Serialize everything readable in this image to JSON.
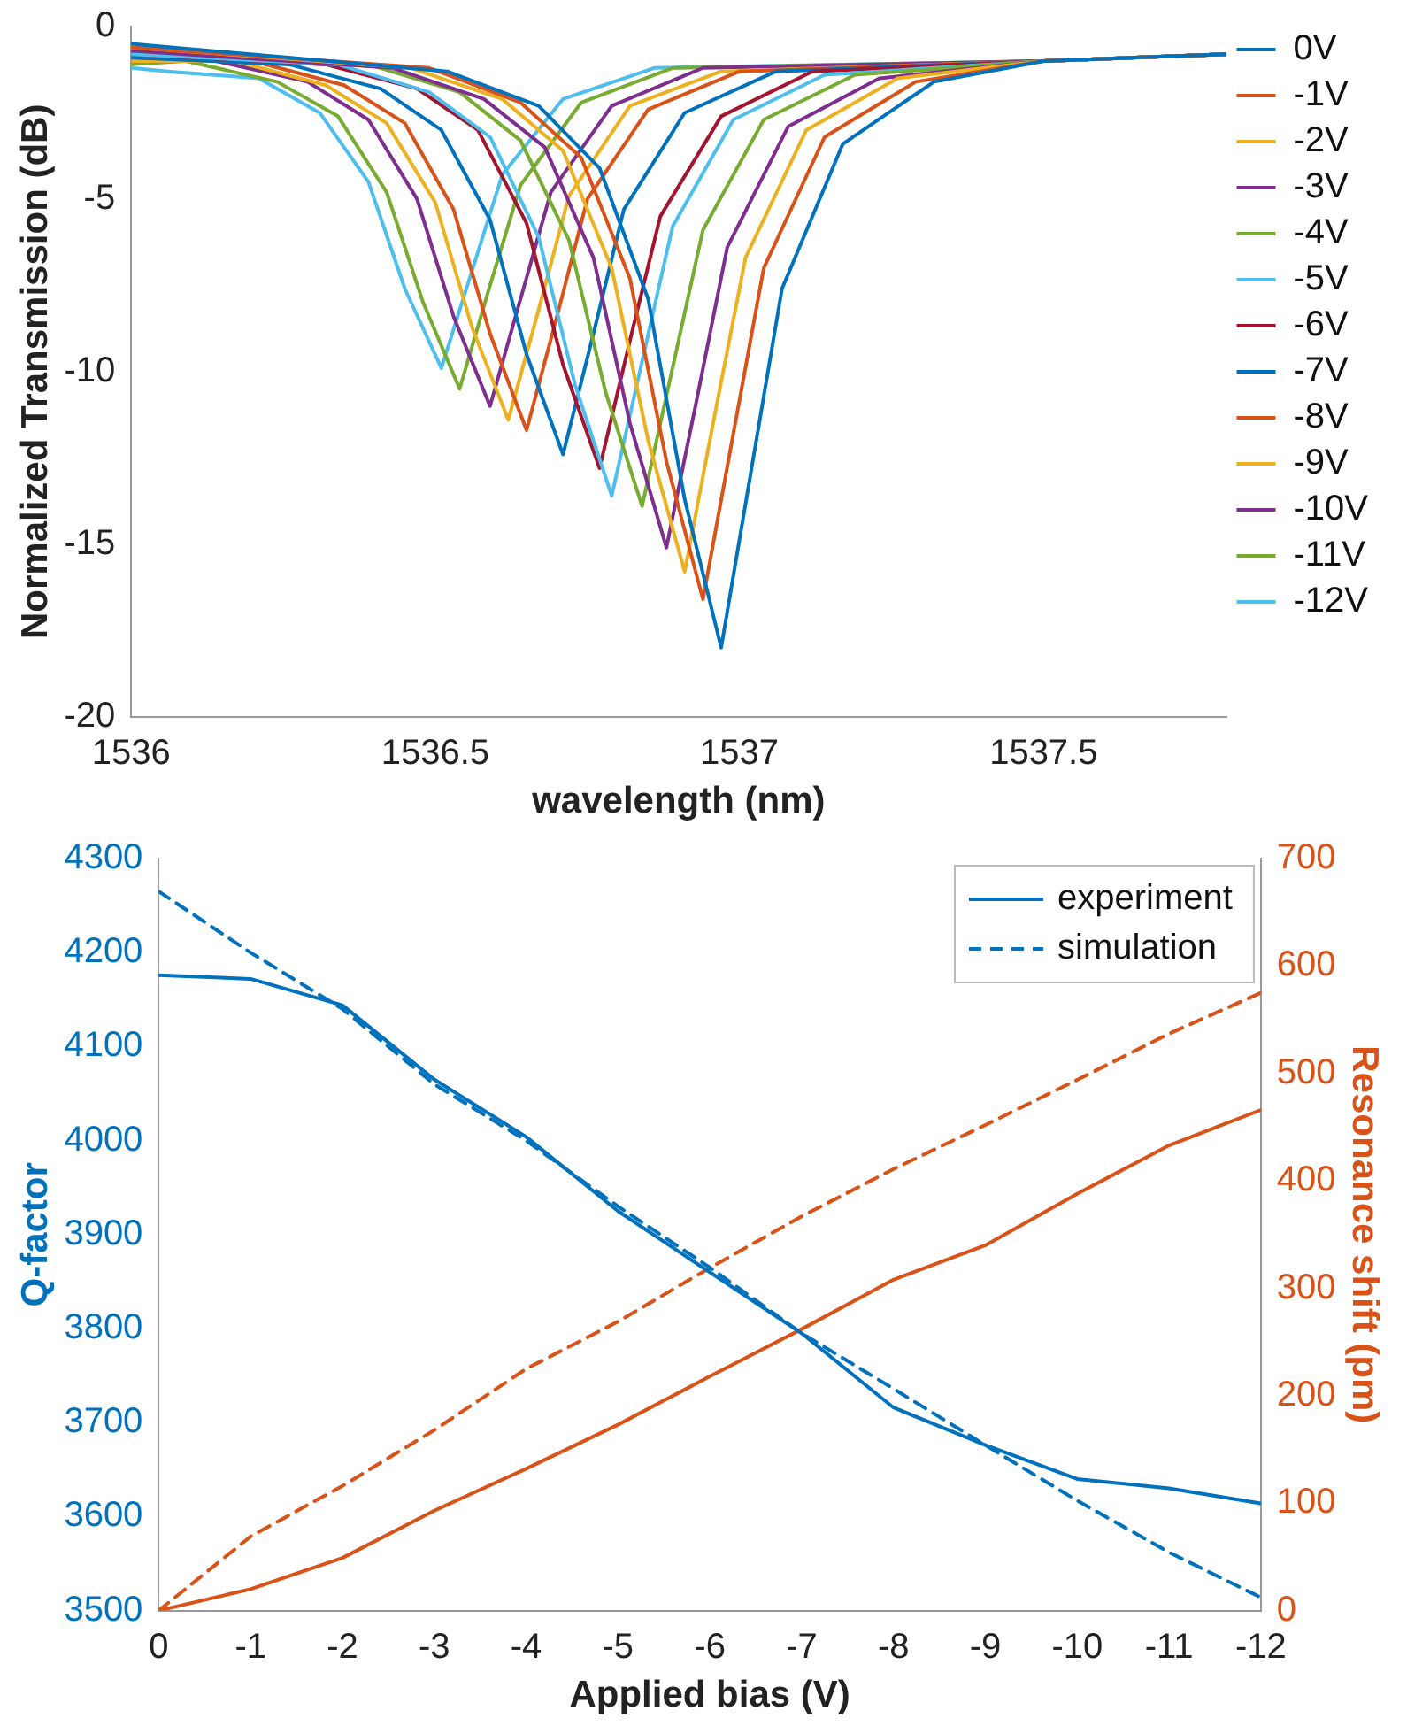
{
  "chart_data": [
    {
      "type": "line",
      "xlabel": "wavelength (nm)",
      "ylabel": "Normalized Transmission (dB)",
      "xlim": [
        1536,
        1537.8
      ],
      "xticks": [
        1536,
        1536.5,
        1537,
        1537.5
      ],
      "ylim": [
        -20,
        0
      ],
      "yticks": [
        -20,
        -15,
        -10,
        -5,
        0
      ],
      "grid": false,
      "legend": "right",
      "marker": "none",
      "line_style": "solid",
      "series": [
        {
          "name": "0V",
          "color": "#0072bd",
          "x": [
            1536,
            1536.52,
            1536.67,
            1536.77,
            1536.85,
            1536.91,
            1536.97,
            1537.02,
            1537.07,
            1537.17,
            1537.32,
            1537.5,
            1537.8
          ],
          "values": [
            -0.5,
            -1.3,
            -2.3,
            -4.1,
            -7.9,
            -13.7,
            -18.0,
            -12.8,
            -7.6,
            -3.4,
            -1.6,
            -1.0,
            -0.8
          ]
        },
        {
          "name": "-1V",
          "color": "#d95319",
          "x": [
            1536,
            1536.49,
            1536.64,
            1536.74,
            1536.82,
            1536.88,
            1536.94,
            1536.99,
            1537.04,
            1537.14,
            1537.29,
            1537.5,
            1537.8
          ],
          "values": [
            -0.6,
            -1.2,
            -2.2,
            -3.8,
            -7.3,
            -12.6,
            -16.6,
            -11.8,
            -7.0,
            -3.2,
            -1.6,
            -1.0,
            -0.8
          ]
        },
        {
          "name": "-2V",
          "color": "#edb120",
          "x": [
            1536,
            1536.46,
            1536.61,
            1536.71,
            1536.79,
            1536.85,
            1536.91,
            1536.96,
            1537.01,
            1537.11,
            1537.26,
            1537.5,
            1537.8
          ],
          "values": [
            -0.6,
            -1.2,
            -2.1,
            -3.6,
            -7.0,
            -12.0,
            -15.8,
            -11.2,
            -6.7,
            -3.0,
            -1.5,
            -1.0,
            -0.8
          ]
        },
        {
          "name": "-3V",
          "color": "#7e2f8e",
          "x": [
            1536,
            1536.43,
            1536.58,
            1536.68,
            1536.76,
            1536.82,
            1536.88,
            1536.93,
            1536.98,
            1537.08,
            1537.23,
            1537.5,
            1537.8
          ],
          "values": [
            -0.7,
            -1.2,
            -2.1,
            -3.5,
            -6.7,
            -11.5,
            -15.1,
            -10.8,
            -6.4,
            -2.9,
            -1.5,
            -1.0,
            -0.8
          ]
        },
        {
          "name": "-4V",
          "color": "#77ac30",
          "x": [
            1536,
            1536.39,
            1536.54,
            1536.64,
            1536.72,
            1536.78,
            1536.84,
            1536.89,
            1536.94,
            1537.04,
            1537.19,
            1537.5,
            1537.8
          ],
          "values": [
            -0.7,
            -1.1,
            -1.9,
            -3.3,
            -6.2,
            -10.6,
            -13.9,
            -9.9,
            -5.9,
            -2.7,
            -1.4,
            -1.0,
            -0.8
          ]
        },
        {
          "name": "-5V",
          "color": "#4dbeee",
          "x": [
            1536,
            1536.34,
            1536.49,
            1536.59,
            1536.67,
            1536.73,
            1536.79,
            1536.84,
            1536.89,
            1536.99,
            1537.14,
            1537.5,
            1537.8
          ],
          "values": [
            -0.8,
            -1.1,
            -1.9,
            -3.2,
            -6.1,
            -10.4,
            -13.6,
            -9.7,
            -5.8,
            -2.7,
            -1.4,
            -1.0,
            -0.8
          ]
        },
        {
          "name": "-6V",
          "color": "#a2142f",
          "x": [
            1536,
            1536.32,
            1536.47,
            1536.57,
            1536.65,
            1536.71,
            1536.77,
            1536.82,
            1536.87,
            1536.97,
            1537.12,
            1537.5,
            1537.8
          ],
          "values": [
            -0.8,
            -1.1,
            -1.8,
            -3.0,
            -5.7,
            -9.8,
            -12.8,
            -9.1,
            -5.5,
            -2.6,
            -1.3,
            -1.0,
            -0.8
          ]
        },
        {
          "name": "-7V",
          "color": "#0072bd",
          "x": [
            1536,
            1536.26,
            1536.41,
            1536.51,
            1536.59,
            1536.65,
            1536.71,
            1536.76,
            1536.81,
            1536.91,
            1537.06,
            1537.5,
            1537.8
          ],
          "values": [
            -0.9,
            -1.1,
            -1.8,
            -3.0,
            -5.6,
            -9.5,
            -12.4,
            -8.9,
            -5.3,
            -2.5,
            -1.3,
            -1.0,
            -0.8
          ]
        },
        {
          "name": "-8V",
          "color": "#d95319",
          "x": [
            1536,
            1536.2,
            1536.35,
            1536.45,
            1536.53,
            1536.59,
            1536.65,
            1536.7,
            1536.75,
            1536.85,
            1537.0,
            1537.5,
            1537.8
          ],
          "values": [
            -0.9,
            -1.0,
            -1.7,
            -2.8,
            -5.3,
            -8.9,
            -11.7,
            -8.4,
            -5.0,
            -2.4,
            -1.3,
            -1.0,
            -0.8
          ]
        },
        {
          "name": "-9V",
          "color": "#edb120",
          "x": [
            1536,
            1536.17,
            1536.32,
            1536.42,
            1536.5,
            1536.56,
            1536.62,
            1536.67,
            1536.72,
            1536.82,
            1536.97,
            1537.5,
            1537.8
          ],
          "values": [
            -1.0,
            -1.0,
            -1.7,
            -2.8,
            -5.1,
            -8.7,
            -11.4,
            -8.2,
            -4.9,
            -2.3,
            -1.3,
            -1.0,
            -0.8
          ]
        },
        {
          "name": "-10V",
          "color": "#7e2f8e",
          "x": [
            1536,
            1536.14,
            1536.29,
            1536.39,
            1536.47,
            1536.53,
            1536.59,
            1536.64,
            1536.69,
            1536.79,
            1536.94,
            1537.5,
            1537.8
          ],
          "values": [
            -1.0,
            -1.0,
            -1.6,
            -2.7,
            -5.0,
            -8.4,
            -11.0,
            -7.9,
            -4.8,
            -2.3,
            -1.2,
            -1.0,
            -0.8
          ]
        },
        {
          "name": "-11V",
          "color": "#77ac30",
          "x": [
            1536,
            1536.09,
            1536.24,
            1536.34,
            1536.42,
            1536.48,
            1536.54,
            1536.59,
            1536.64,
            1536.74,
            1536.89,
            1537.5,
            1537.8
          ],
          "values": [
            -1.1,
            -1.0,
            -1.6,
            -2.6,
            -4.8,
            -8.0,
            -10.5,
            -7.5,
            -4.6,
            -2.2,
            -1.2,
            -1.0,
            -0.8
          ]
        },
        {
          "name": "-12V",
          "color": "#4dbeee",
          "x": [
            1536,
            1536.06,
            1536.21,
            1536.31,
            1536.39,
            1536.45,
            1536.51,
            1536.56,
            1536.61,
            1536.71,
            1536.86,
            1537.5,
            1537.8
          ],
          "values": [
            -1.2,
            -1.3,
            -1.5,
            -2.5,
            -4.5,
            -7.6,
            -9.9,
            -7.1,
            -4.3,
            -2.1,
            -1.2,
            -1.0,
            -0.8
          ]
        }
      ]
    },
    {
      "type": "line",
      "xlabel": "Applied bias (V)",
      "ylabel": "Q-factor",
      "y2label": "Resonance shift (pm)",
      "xlim": [
        0,
        -12
      ],
      "xticks": [
        0,
        -1,
        -2,
        -3,
        -4,
        -5,
        -6,
        -7,
        -8,
        -9,
        -10,
        -11,
        -12
      ],
      "ylim": [
        3500,
        4300
      ],
      "yticks": [
        3500,
        3600,
        3700,
        3800,
        3900,
        4000,
        4100,
        4200,
        4300
      ],
      "y2lim": [
        0,
        700
      ],
      "y2ticks": [
        0,
        100,
        200,
        300,
        400,
        500,
        600,
        700
      ],
      "grid": false,
      "legend": "top right",
      "marker": "none",
      "x": [
        0,
        -1,
        -2,
        -3,
        -4,
        -5,
        -6,
        -7,
        -8,
        -9,
        -10,
        -11,
        -12
      ],
      "series": [
        {
          "name": "experiment",
          "color": "#0072bd",
          "line_style": "solid",
          "values": [
            4176,
            4172,
            4144,
            4065,
            4004,
            3925,
            3860,
            3795,
            3716,
            3676,
            3640,
            3630,
            3614
          ]
        },
        {
          "name": "simulation",
          "color": "#0072bd",
          "line_style": "dashed",
          "values": [
            4265,
            4200,
            4140,
            4060,
            4000,
            3930,
            3865,
            3795,
            3736,
            3676,
            3617,
            3562,
            3514
          ]
        },
        {
          "color": "#d95319",
          "axis": "y2",
          "line_style": "solid",
          "values": [
            0,
            20,
            49,
            93,
            132,
            173,
            218,
            262,
            308,
            340,
            388,
            433,
            466
          ]
        },
        {
          "color": "#d95319",
          "axis": "y2",
          "line_style": "dashed",
          "values": [
            0,
            69,
            116,
            168,
            225,
            269,
            319,
            367,
            411,
            452,
            494,
            537,
            575
          ]
        }
      ]
    }
  ]
}
